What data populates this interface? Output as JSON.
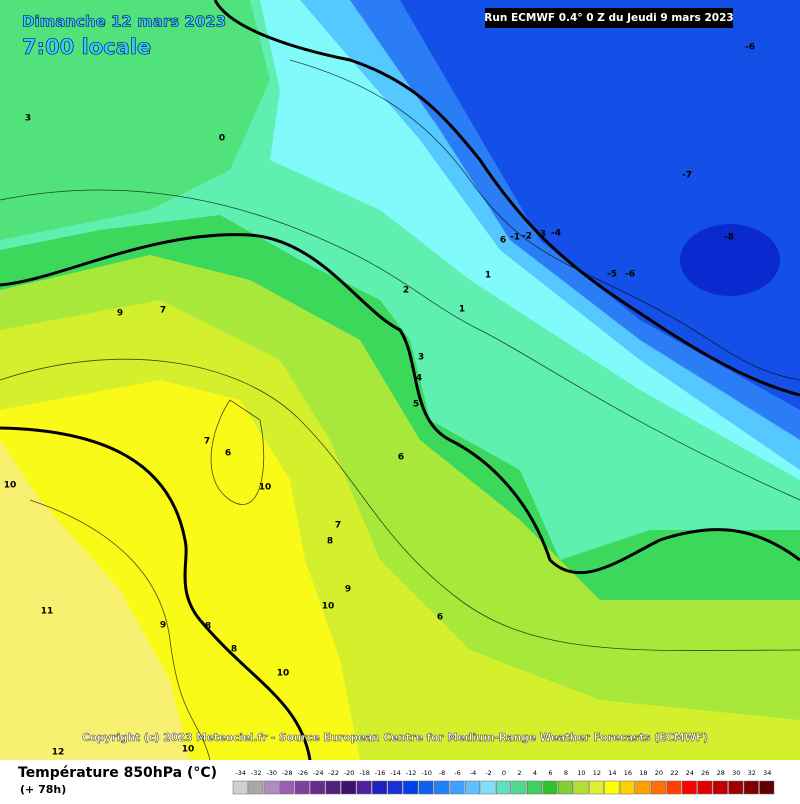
{
  "header": {
    "date": "Dimanche 12 mars 2023",
    "time": "7:00 locale",
    "run": "Run ECMWF 0.4° 0 Z du Jeudi 9 mars 2023"
  },
  "map_labels": [
    "3",
    "0",
    "-6",
    "-7",
    "-8",
    "6",
    "-1",
    "-2",
    "-3",
    "-4",
    "-5",
    "-6",
    "1",
    "2",
    "1",
    "3",
    "4",
    "5",
    "6",
    "7",
    "6",
    "10",
    "10",
    "9",
    "7",
    "7",
    "8",
    "9",
    "10",
    "11",
    "9",
    "8",
    "6",
    "8",
    "10",
    "10",
    "12"
  ],
  "copyright": "Copyright (c) 2023 Meteociel.fr - Source European Centre for Medium-Range Weather Forecasts (ECMWF)",
  "legend": {
    "title": "Température 850hPa (°C)",
    "subtitle": "(+ 78h)",
    "scale": [
      -34,
      -32,
      -30,
      -28,
      -26,
      -24,
      -22,
      -20,
      -18,
      -16,
      -14,
      -12,
      -10,
      -8,
      -6,
      -4,
      -2,
      0,
      2,
      4,
      6,
      8,
      10,
      12,
      14,
      16,
      18,
      20,
      22,
      24,
      26,
      28,
      30,
      32,
      34
    ],
    "colors": [
      "#d0d0d0",
      "#a8a8a8",
      "#b08cc0",
      "#9a5fb0",
      "#8040a0",
      "#6a2a90",
      "#502080",
      "#401070",
      "#5020a0",
      "#2020c0",
      "#1830d8",
      "#0040e8",
      "#1060f0",
      "#2080f8",
      "#40a0ff",
      "#60c0ff",
      "#80e0ff",
      "#60e0c0",
      "#50d890",
      "#40d060",
      "#30c030",
      "#80d030",
      "#b0e030",
      "#e0f030",
      "#ffff00",
      "#ffd000",
      "#ffa000",
      "#ff7000",
      "#ff4000",
      "#ff0000",
      "#e00000",
      "#c00000",
      "#a00000",
      "#800000",
      "#600000"
    ]
  }
}
